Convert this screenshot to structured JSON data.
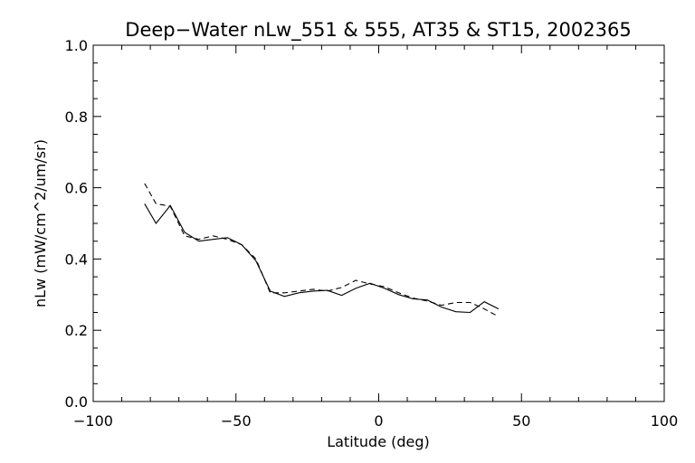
{
  "chart_data": {
    "type": "line",
    "title": "Deep−Water nLw_551 & 555, AT35 & ST15, 2002365",
    "xlabel": "Latitude (deg)",
    "ylabel": "nLw (mW/cm^2/um/sr)",
    "xlim": [
      -100,
      100
    ],
    "ylim": [
      0.0,
      1.0
    ],
    "xticks": [
      -100,
      -50,
      0,
      50,
      100
    ],
    "xtick_labels": [
      "−100",
      "−50",
      "0",
      "50",
      "100"
    ],
    "yticks": [
      0.0,
      0.2,
      0.4,
      0.6,
      0.8,
      1.0
    ],
    "ytick_labels": [
      "0.0",
      "0.2",
      "0.4",
      "0.6",
      "0.8",
      "1.0"
    ],
    "grid": false,
    "colors": {
      "line": "#000000",
      "background": "#ffffff"
    },
    "series": [
      {
        "style": "solid",
        "x": [
          -82,
          -78,
          -73,
          -68,
          -63,
          -58,
          -53,
          -48,
          -43,
          -38,
          -33,
          -28,
          -23,
          -18,
          -13,
          -8,
          -3,
          2,
          7,
          12,
          17,
          22,
          27,
          32,
          37,
          42
        ],
        "y": [
          0.555,
          0.5,
          0.55,
          0.475,
          0.45,
          0.455,
          0.46,
          0.44,
          0.395,
          0.31,
          0.295,
          0.305,
          0.31,
          0.312,
          0.298,
          0.318,
          0.332,
          0.318,
          0.3,
          0.288,
          0.285,
          0.265,
          0.252,
          0.25,
          0.28,
          0.26
        ]
      },
      {
        "style": "dashed",
        "x": [
          -82,
          -78,
          -73,
          -68,
          -63,
          -58,
          -53,
          -48,
          -43,
          -38,
          -33,
          -28,
          -23,
          -18,
          -13,
          -8,
          -3,
          2,
          7,
          12,
          17,
          22,
          27,
          32,
          37,
          42
        ],
        "y": [
          0.612,
          0.555,
          0.548,
          0.465,
          0.455,
          0.465,
          0.455,
          0.44,
          0.4,
          0.305,
          0.305,
          0.31,
          0.315,
          0.31,
          0.32,
          0.34,
          0.33,
          0.322,
          0.305,
          0.29,
          0.282,
          0.27,
          0.278,
          0.278,
          0.26,
          0.238
        ]
      }
    ]
  }
}
